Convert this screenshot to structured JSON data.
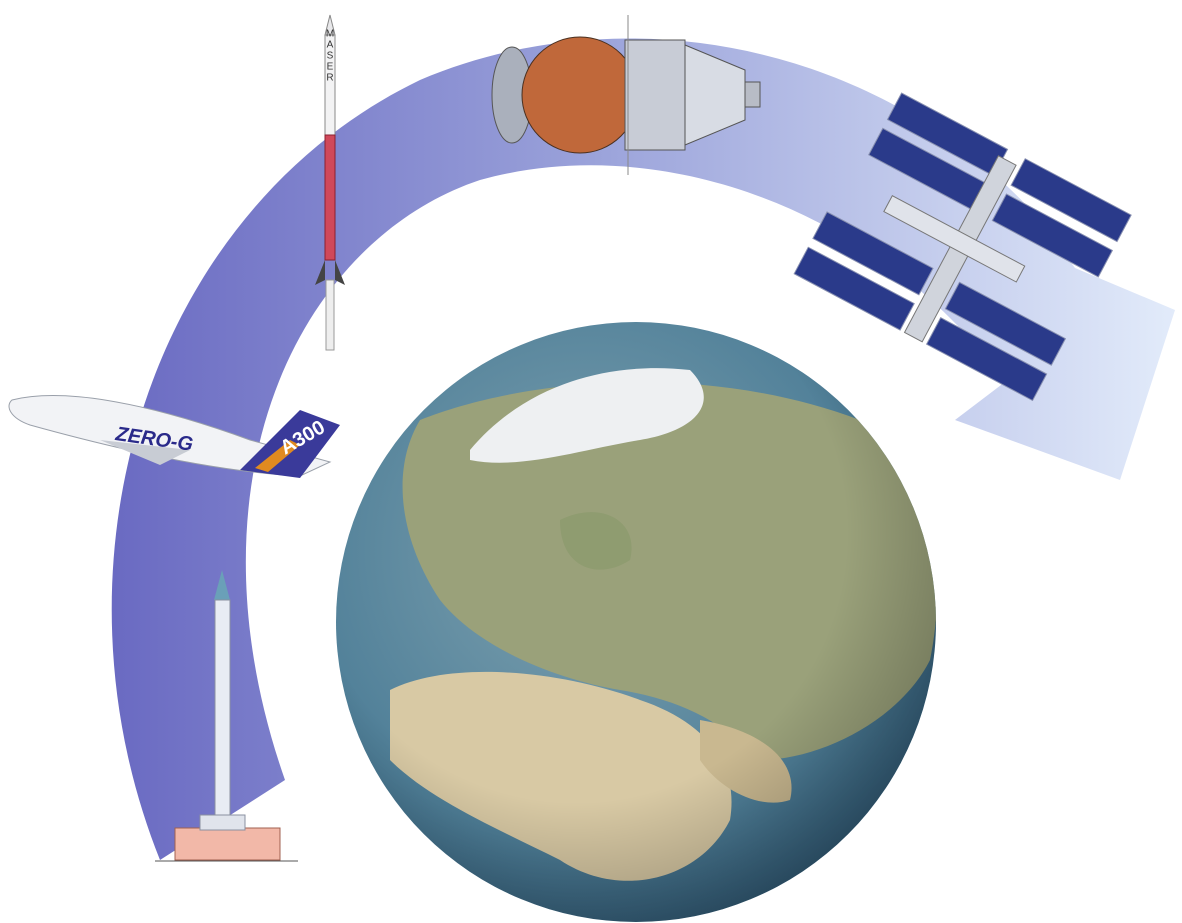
{
  "labels": {
    "rocket": "MASER",
    "plane_name": "ZERO-G",
    "plane_model": "A300"
  }
}
